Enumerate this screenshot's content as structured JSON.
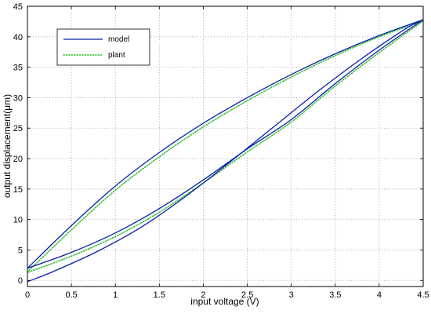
{
  "chart_data": {
    "type": "line",
    "title": "",
    "xlabel": "input voltage (V)",
    "ylabel": "output displacement(μm)",
    "xlim": [
      0,
      4.5
    ],
    "ylim": [
      -1,
      45
    ],
    "xticks": [
      0,
      0.5,
      1,
      1.5,
      2,
      2.5,
      3,
      3.5,
      4,
      4.5
    ],
    "xtick_labels": [
      "0",
      "0.5",
      "1",
      "1.5",
      "2",
      "2.5",
      "3",
      "3.5",
      "4",
      "4.5"
    ],
    "yticks": [
      0,
      5,
      10,
      15,
      20,
      25,
      30,
      35,
      40,
      45
    ],
    "ytick_labels": [
      "0",
      "5",
      "10",
      "15",
      "20",
      "25",
      "30",
      "35",
      "40",
      "45"
    ],
    "grid": true,
    "legend_position": "top-left",
    "series": [
      {
        "name": "model",
        "color": "#0b1fa8",
        "style": "solid",
        "paths": [
          {
            "x": [
              0,
              0.5,
              1,
              1.5,
              2,
              2.5,
              3,
              3.5,
              4,
              4.5
            ],
            "y": [
              2.0,
              9.0,
              15.5,
              21.0,
              25.8,
              30.0,
              33.8,
              37.2,
              40.2,
              42.8
            ]
          },
          {
            "x": [
              4.5,
              4.0,
              3.5,
              3.0,
              2.5,
              2.0,
              1.5,
              1.0,
              0.5,
              0
            ],
            "y": [
              42.8,
              37.8,
              32.3,
              26.4,
              21.6,
              16.5,
              11.8,
              7.8,
              4.6,
              2.0
            ]
          },
          {
            "x": [
              0,
              0.3,
              0.8,
              1.3,
              1.8,
              2.3,
              2.8,
              3.3,
              3.8,
              4.3,
              4.5
            ],
            "y": [
              -0.2,
              1.5,
              4.8,
              8.8,
              13.8,
              19.4,
              25.2,
              31.0,
              36.4,
              41.3,
              42.8
            ]
          }
        ]
      },
      {
        "name": "plant",
        "color": "#2fbf2f",
        "style": "dotted",
        "paths": [
          {
            "x": [
              0,
              0.5,
              1,
              1.5,
              2,
              2.5,
              3,
              3.5,
              4,
              4.5
            ],
            "y": [
              1.4,
              8.3,
              14.8,
              20.3,
              25.2,
              29.5,
              33.4,
              36.9,
              40.0,
              42.6
            ]
          },
          {
            "x": [
              4.5,
              4.0,
              3.5,
              3.0,
              2.5,
              2.0,
              1.5,
              1.0,
              0.5,
              0
            ],
            "y": [
              42.6,
              37.4,
              31.9,
              26.0,
              21.1,
              16.0,
              11.2,
              7.2,
              4.0,
              1.3
            ]
          }
        ]
      }
    ]
  }
}
